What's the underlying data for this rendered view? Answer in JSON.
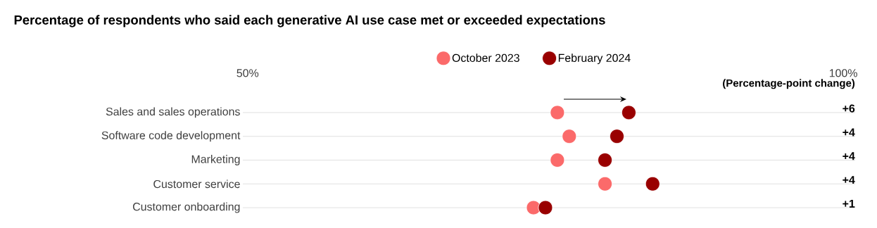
{
  "chart_data": {
    "type": "scatter",
    "orientation": "horizontal",
    "title": "Percentage of respondents who said each generative AI use case met or exceeded expectations",
    "categories": [
      "Sales and sales operations",
      "Software code development",
      "Marketing",
      "Customer service",
      "Customer onboarding"
    ],
    "series": [
      {
        "name": "October 2023",
        "color": "#fb6a6a",
        "values": [
          76,
          77,
          76,
          80,
          74
        ]
      },
      {
        "name": "February 2024",
        "color": "#990000",
        "values": [
          82,
          81,
          80,
          84,
          75
        ]
      }
    ],
    "xlim": [
      49.6,
      101
    ],
    "xticks": [
      {
        "value": 50,
        "label": "50%"
      },
      {
        "value": 100,
        "label": "100%"
      }
    ],
    "marker": "circle",
    "grid": "y",
    "legend": "top",
    "annotations": [
      "(Percentage-point change)",
      "+6",
      "+4",
      "+4",
      "+4",
      "+1"
    ]
  }
}
